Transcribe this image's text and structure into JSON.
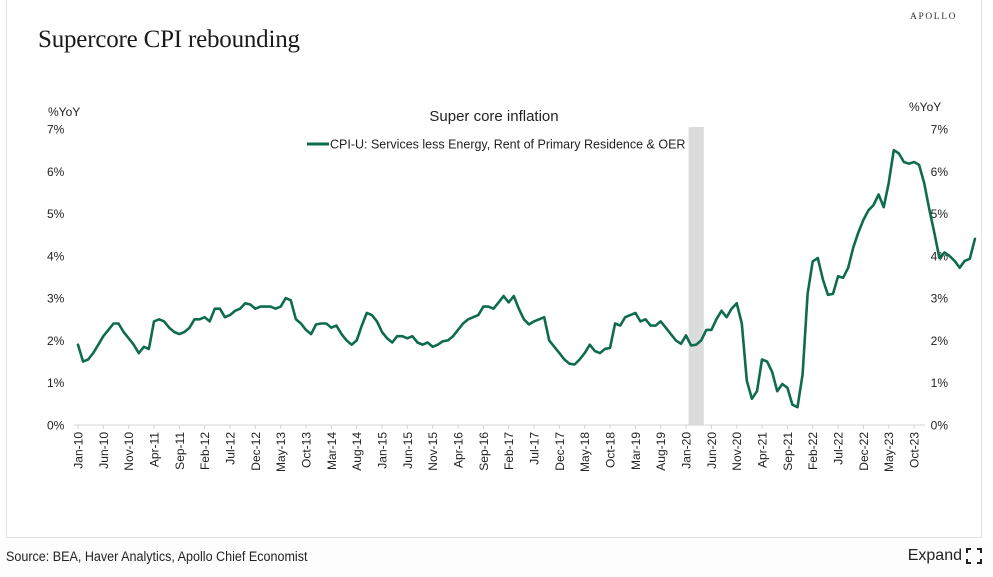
{
  "brand": "APOLLO",
  "title": "Supercore CPI rebounding",
  "footer": {
    "source": "Source: BEA, Haver Analytics, Apollo Chief Economist",
    "expand_label": "Expand"
  },
  "colors": {
    "series": "#0f6b50",
    "recession": "#dcdcdc",
    "axis": "#d6d6d6"
  },
  "chart_data": {
    "type": "line",
    "title": "Super core inflation",
    "ylabel_left": "%YoY",
    "ylabel_right": "%YoY",
    "ylim": [
      0,
      7
    ],
    "yticks": [
      "0%",
      "1%",
      "2%",
      "3%",
      "4%",
      "5%",
      "6%",
      "7%"
    ],
    "grid": false,
    "legend": "top-center",
    "x_start": "Jan-10",
    "x_frequency": "monthly",
    "xtick_labels": [
      "Jan-10",
      "Jun-10",
      "Nov-10",
      "Apr-11",
      "Sep-11",
      "Feb-12",
      "Jul-12",
      "Dec-12",
      "May-13",
      "Oct-13",
      "Mar-14",
      "Aug-14",
      "Jan-15",
      "Jun-15",
      "Nov-15",
      "Apr-16",
      "Sep-16",
      "Feb-17",
      "Jul-17",
      "Dec-17",
      "May-18",
      "Oct-18",
      "Mar-19",
      "Aug-19",
      "Jan-20",
      "Jun-20",
      "Nov-20",
      "Apr-21",
      "Sep-21",
      "Feb-22",
      "Jul-22",
      "Dec-22",
      "May-23",
      "Oct-23"
    ],
    "shaded_regions": [
      {
        "label": "Recession",
        "start": "Feb-20",
        "end": "Apr-20"
      }
    ],
    "series": [
      {
        "name": "CPI-U: Services less Energy, Rent of Primary Residence & OER",
        "values": [
          1.9,
          1.5,
          1.55,
          1.7,
          1.9,
          2.1,
          2.25,
          2.4,
          2.4,
          2.2,
          2.05,
          1.9,
          1.7,
          1.85,
          1.8,
          2.45,
          2.5,
          2.45,
          2.3,
          2.2,
          2.15,
          2.2,
          2.3,
          2.5,
          2.5,
          2.55,
          2.45,
          2.75,
          2.75,
          2.55,
          2.6,
          2.7,
          2.75,
          2.88,
          2.85,
          2.75,
          2.8,
          2.8,
          2.8,
          2.75,
          2.8,
          3.0,
          2.95,
          2.5,
          2.4,
          2.25,
          2.15,
          2.38,
          2.4,
          2.4,
          2.3,
          2.35,
          2.15,
          2.0,
          1.9,
          2.0,
          2.35,
          2.65,
          2.6,
          2.45,
          2.2,
          2.05,
          1.95,
          2.1,
          2.1,
          2.05,
          2.1,
          1.95,
          1.9,
          1.95,
          1.85,
          1.9,
          1.98,
          2.0,
          2.1,
          2.25,
          2.4,
          2.5,
          2.55,
          2.6,
          2.8,
          2.8,
          2.75,
          2.9,
          3.05,
          2.9,
          3.05,
          2.75,
          2.5,
          2.38,
          2.45,
          2.5,
          2.55,
          2.0,
          1.85,
          1.7,
          1.55,
          1.45,
          1.43,
          1.55,
          1.7,
          1.9,
          1.75,
          1.7,
          1.8,
          1.82,
          2.4,
          2.35,
          2.55,
          2.6,
          2.65,
          2.45,
          2.5,
          2.35,
          2.35,
          2.45,
          2.3,
          2.15,
          2.0,
          1.92,
          2.12,
          1.88,
          1.9,
          2.0,
          2.25,
          2.25,
          2.5,
          2.7,
          2.55,
          2.75,
          2.88,
          2.4,
          1.05,
          0.62,
          0.8,
          1.55,
          1.5,
          1.25,
          0.8,
          0.97,
          0.88,
          0.48,
          0.42,
          1.2,
          3.1,
          3.87,
          3.95,
          3.45,
          3.08,
          3.1,
          3.52,
          3.48,
          3.72,
          4.2,
          4.55,
          4.85,
          5.08,
          5.2,
          5.45,
          5.15,
          5.72,
          6.5,
          6.42,
          6.22,
          6.18,
          6.22,
          6.15,
          5.72,
          5.1,
          4.55,
          3.95,
          4.08,
          4.0,
          3.88,
          3.72,
          3.88,
          3.93,
          4.4
        ]
      }
    ]
  }
}
